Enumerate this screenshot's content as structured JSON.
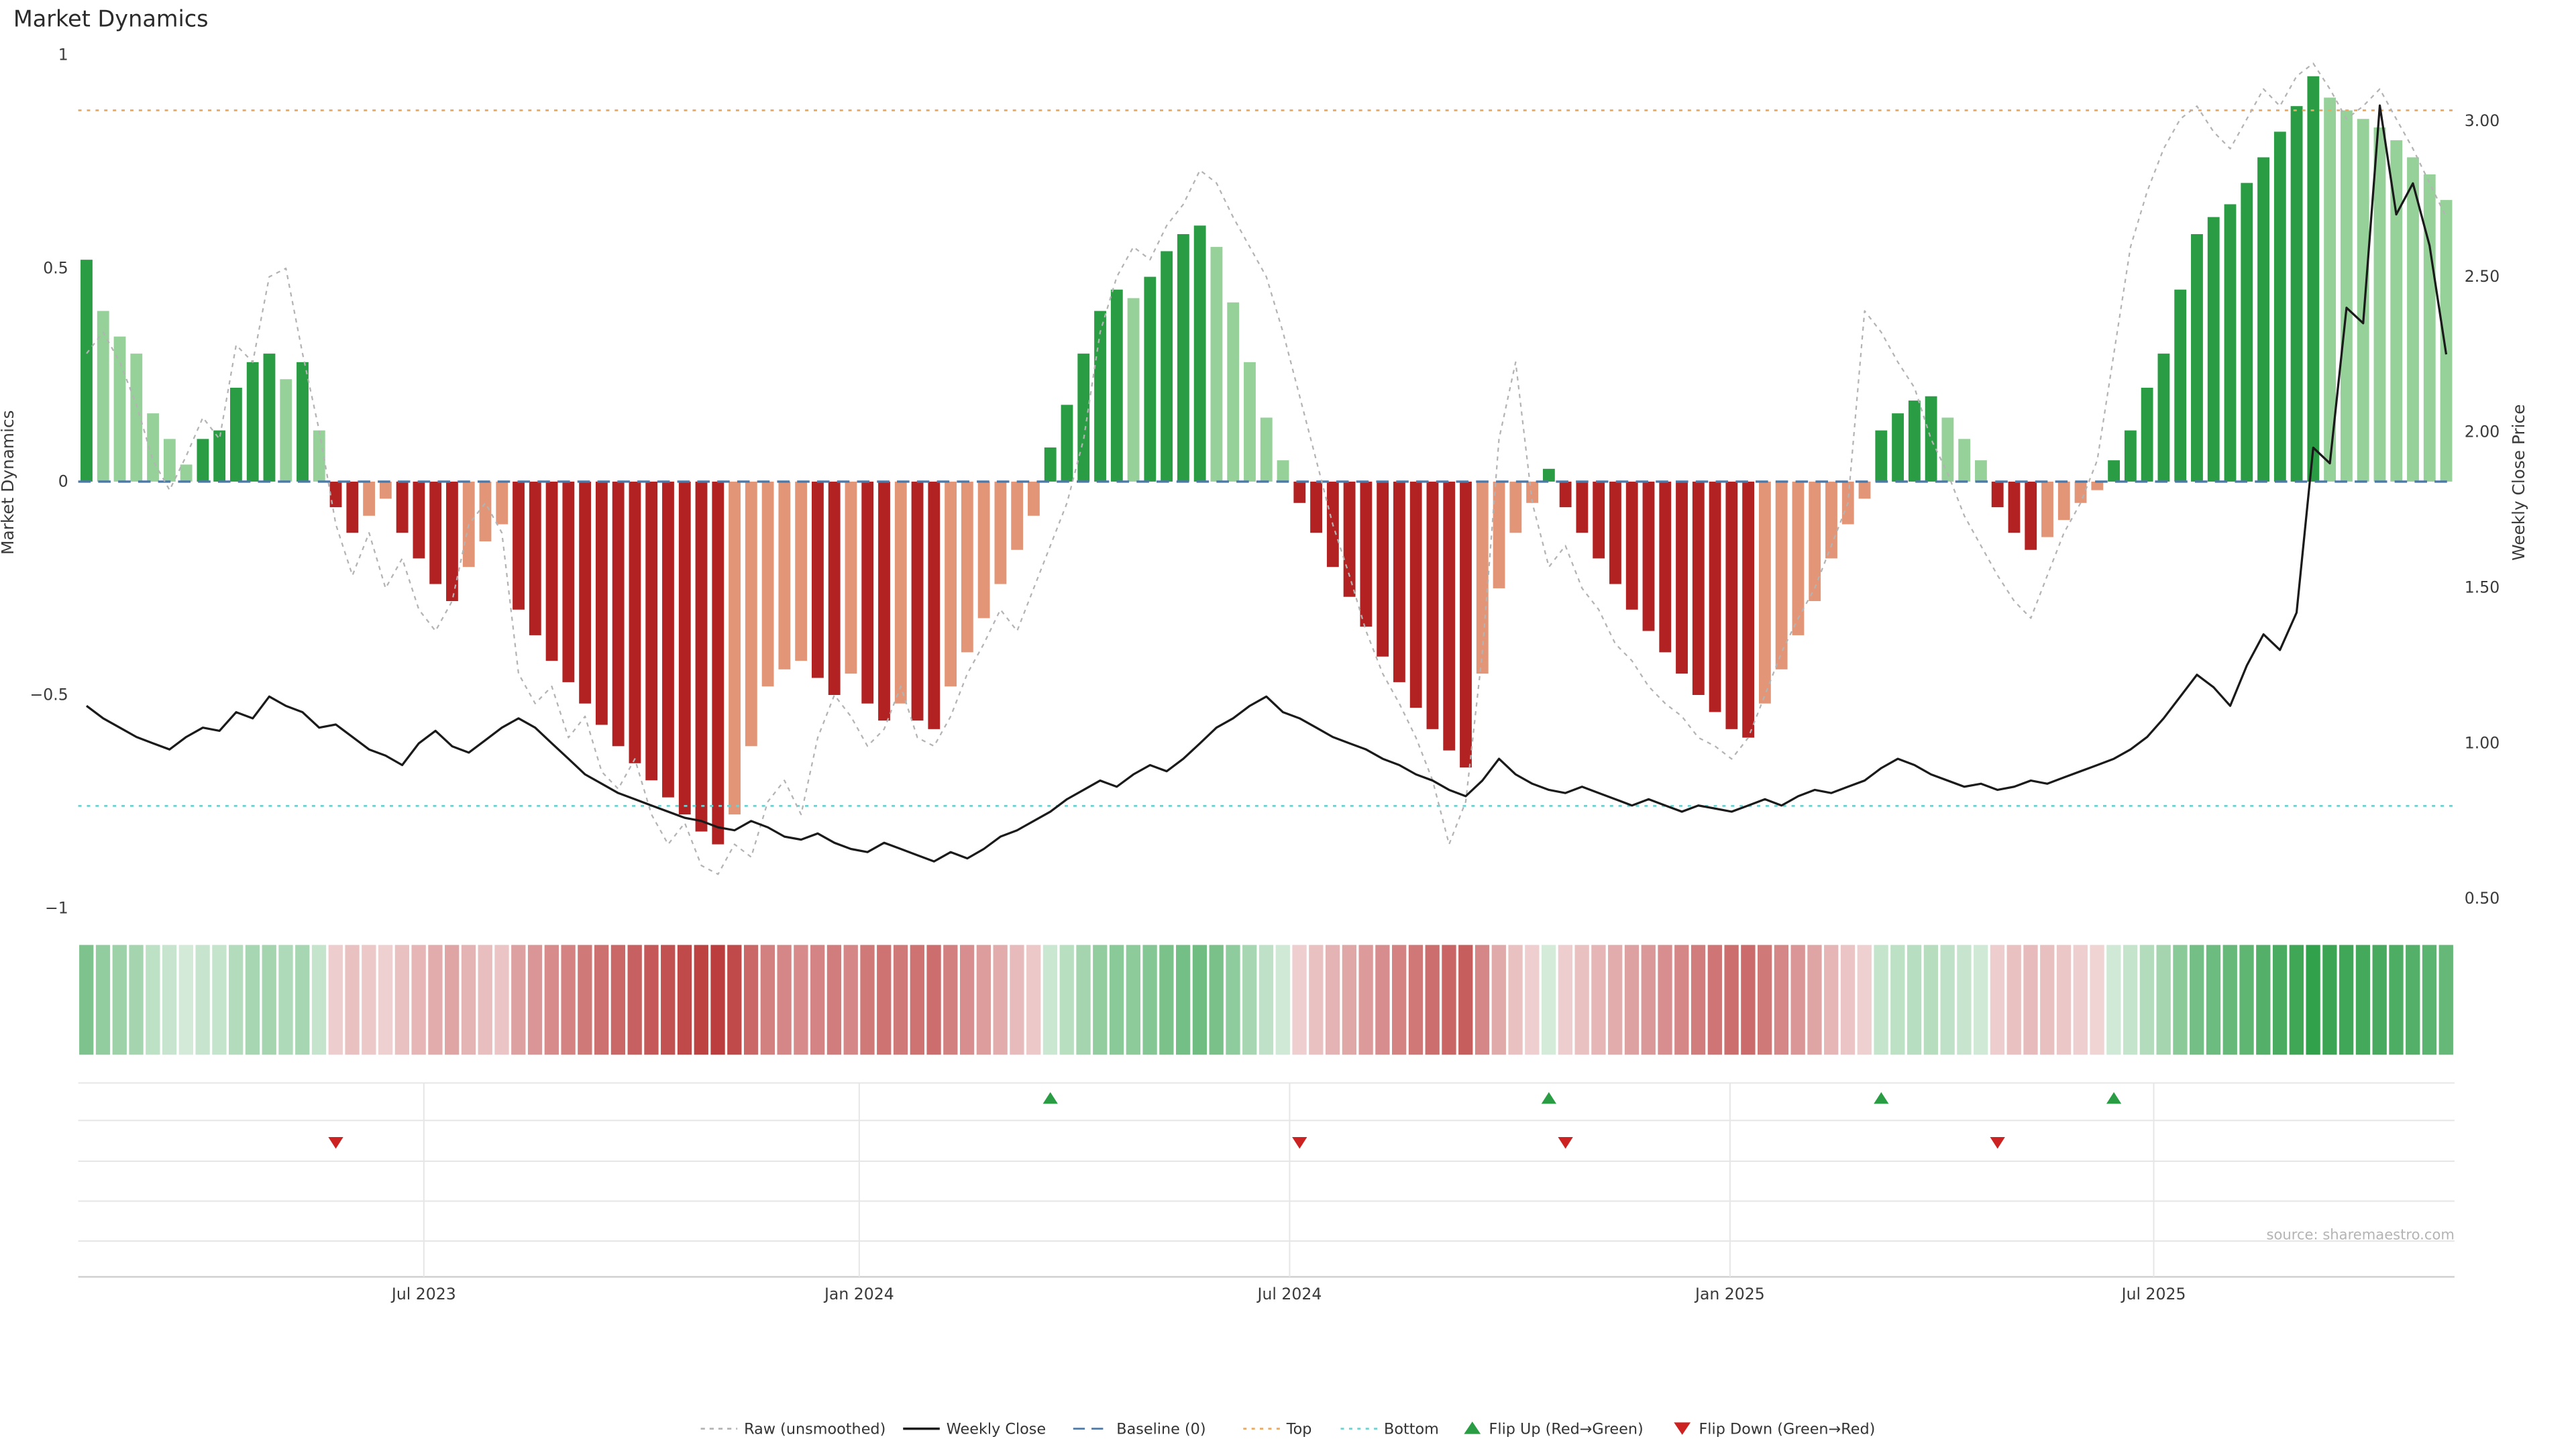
{
  "title": "Market Dynamics",
  "source": "source: sharemaestro.com",
  "axes": {
    "left": {
      "label": "Market Dynamics",
      "ticks": [
        "1",
        "0.5",
        "0",
        "−0.5",
        "−1"
      ],
      "tick_values": [
        1,
        0.5,
        0,
        -0.5,
        -1
      ],
      "range": [
        -1,
        1
      ]
    },
    "right": {
      "label": "Weekly Close Price",
      "ticks": [
        "3.00",
        "2.50",
        "2.00",
        "1.50",
        "1.00",
        "0.50"
      ],
      "tick_values": [
        3.0,
        2.5,
        2.0,
        1.5,
        1.0,
        0.5
      ],
      "range": [
        0.4693,
        3.2128
      ]
    },
    "x": {
      "ticks": [
        {
          "label": "Jul 2023",
          "week": 20.8
        },
        {
          "label": "Jan 2024",
          "week": 47.0
        },
        {
          "label": "Jul 2024",
          "week": 72.9
        },
        {
          "label": "Jan 2025",
          "week": 99.4
        },
        {
          "label": "Jul 2025",
          "week": 124.9
        }
      ]
    }
  },
  "chart_data": {
    "type": "combo: weekly oscillator bars + raw dashed line (left axis), weekly close line (right axis), heatmap strip, flip event markers",
    "weeks": 143,
    "reference_lines": {
      "baseline": 0,
      "top": 0.87,
      "bottom": -0.76
    },
    "series": [
      {
        "name": "Market Dynamics (smoothed bars)",
        "type": "bar",
        "axis": "left",
        "values": [
          0.52,
          0.4,
          0.34,
          0.3,
          0.16,
          0.1,
          0.04,
          0.1,
          0.12,
          0.22,
          0.28,
          0.3,
          0.24,
          0.28,
          0.12,
          -0.06,
          -0.12,
          -0.08,
          -0.04,
          -0.12,
          -0.18,
          -0.24,
          -0.28,
          -0.2,
          -0.14,
          -0.1,
          -0.3,
          -0.36,
          -0.42,
          -0.47,
          -0.52,
          -0.57,
          -0.62,
          -0.66,
          -0.7,
          -0.74,
          -0.78,
          -0.82,
          -0.85,
          -0.78,
          -0.62,
          -0.48,
          -0.44,
          -0.42,
          -0.46,
          -0.5,
          -0.45,
          -0.52,
          -0.56,
          -0.52,
          -0.56,
          -0.58,
          -0.48,
          -0.4,
          -0.32,
          -0.24,
          -0.16,
          -0.08,
          0.08,
          0.18,
          0.3,
          0.4,
          0.45,
          0.43,
          0.48,
          0.54,
          0.58,
          0.6,
          0.55,
          0.42,
          0.28,
          0.15,
          0.05,
          -0.05,
          -0.12,
          -0.2,
          -0.27,
          -0.34,
          -0.41,
          -0.47,
          -0.53,
          -0.58,
          -0.63,
          -0.67,
          -0.45,
          -0.25,
          -0.12,
          -0.05,
          0.03,
          -0.06,
          -0.12,
          -0.18,
          -0.24,
          -0.3,
          -0.35,
          -0.4,
          -0.45,
          -0.5,
          -0.54,
          -0.58,
          -0.6,
          -0.52,
          -0.44,
          -0.36,
          -0.28,
          -0.18,
          -0.1,
          -0.04,
          0.12,
          0.16,
          0.19,
          0.2,
          0.15,
          0.1,
          0.05,
          -0.06,
          -0.12,
          -0.16,
          -0.13,
          -0.09,
          -0.05,
          -0.02,
          0.05,
          0.12,
          0.22,
          0.3,
          0.45,
          0.58,
          0.62,
          0.65,
          0.7,
          0.76,
          0.82,
          0.88,
          0.95,
          0.9,
          0.87,
          0.85,
          0.83,
          0.8,
          0.76,
          0.72,
          0.66
        ]
      },
      {
        "name": "Raw (unsmoothed)",
        "type": "line",
        "axis": "left",
        "values": [
          0.3,
          0.35,
          0.28,
          0.18,
          0.05,
          -0.02,
          0.06,
          0.15,
          0.1,
          0.32,
          0.28,
          0.48,
          0.5,
          0.3,
          0.12,
          -0.1,
          -0.22,
          -0.12,
          -0.25,
          -0.18,
          -0.3,
          -0.35,
          -0.28,
          -0.1,
          -0.05,
          -0.12,
          -0.45,
          -0.52,
          -0.48,
          -0.6,
          -0.55,
          -0.68,
          -0.72,
          -0.65,
          -0.78,
          -0.85,
          -0.8,
          -0.9,
          -0.92,
          -0.85,
          -0.88,
          -0.75,
          -0.7,
          -0.78,
          -0.6,
          -0.5,
          -0.55,
          -0.62,
          -0.58,
          -0.48,
          -0.6,
          -0.62,
          -0.55,
          -0.45,
          -0.38,
          -0.3,
          -0.35,
          -0.25,
          -0.15,
          -0.05,
          0.1,
          0.35,
          0.48,
          0.55,
          0.52,
          0.6,
          0.65,
          0.73,
          0.7,
          0.62,
          0.55,
          0.48,
          0.35,
          0.2,
          0.05,
          -0.1,
          -0.22,
          -0.35,
          -0.45,
          -0.52,
          -0.6,
          -0.7,
          -0.85,
          -0.75,
          -0.4,
          0.1,
          0.28,
          -0.05,
          -0.2,
          -0.15,
          -0.25,
          -0.3,
          -0.38,
          -0.42,
          -0.48,
          -0.52,
          -0.55,
          -0.6,
          -0.62,
          -0.65,
          -0.6,
          -0.5,
          -0.4,
          -0.32,
          -0.25,
          -0.15,
          -0.05,
          0.4,
          0.35,
          0.28,
          0.22,
          0.1,
          0.02,
          -0.08,
          -0.15,
          -0.22,
          -0.28,
          -0.32,
          -0.22,
          -0.12,
          -0.05,
          0.05,
          0.3,
          0.55,
          0.68,
          0.78,
          0.85,
          0.88,
          0.82,
          0.78,
          0.85,
          0.92,
          0.88,
          0.95,
          0.98,
          0.92,
          0.85,
          0.88,
          0.92,
          0.85,
          0.78,
          0.7,
          0.62
        ]
      },
      {
        "name": "Weekly Close",
        "type": "line",
        "axis": "right",
        "values": [
          1.12,
          1.08,
          1.05,
          1.02,
          1.0,
          0.98,
          1.02,
          1.05,
          1.04,
          1.1,
          1.08,
          1.15,
          1.12,
          1.1,
          1.05,
          1.06,
          1.02,
          0.98,
          0.96,
          0.93,
          1.0,
          1.04,
          0.99,
          0.97,
          1.01,
          1.05,
          1.08,
          1.05,
          1.0,
          0.95,
          0.9,
          0.87,
          0.84,
          0.82,
          0.8,
          0.78,
          0.76,
          0.75,
          0.73,
          0.72,
          0.75,
          0.73,
          0.7,
          0.69,
          0.71,
          0.68,
          0.66,
          0.65,
          0.68,
          0.66,
          0.64,
          0.62,
          0.65,
          0.63,
          0.66,
          0.7,
          0.72,
          0.75,
          0.78,
          0.82,
          0.85,
          0.88,
          0.86,
          0.9,
          0.93,
          0.91,
          0.95,
          1.0,
          1.05,
          1.08,
          1.12,
          1.15,
          1.1,
          1.08,
          1.05,
          1.02,
          1.0,
          0.98,
          0.95,
          0.93,
          0.9,
          0.88,
          0.85,
          0.83,
          0.88,
          0.95,
          0.9,
          0.87,
          0.85,
          0.84,
          0.86,
          0.84,
          0.82,
          0.8,
          0.82,
          0.8,
          0.78,
          0.8,
          0.79,
          0.78,
          0.8,
          0.82,
          0.8,
          0.83,
          0.85,
          0.84,
          0.86,
          0.88,
          0.92,
          0.95,
          0.93,
          0.9,
          0.88,
          0.86,
          0.87,
          0.85,
          0.86,
          0.88,
          0.87,
          0.89,
          0.91,
          0.93,
          0.95,
          0.98,
          1.02,
          1.08,
          1.15,
          1.22,
          1.18,
          1.12,
          1.25,
          1.35,
          1.3,
          1.42,
          1.95,
          1.9,
          2.4,
          2.35,
          3.05,
          2.7,
          2.8,
          2.6,
          2.25
        ]
      }
    ],
    "flip_up_weeks": [
      58,
      88,
      108,
      122
    ],
    "flip_down_weeks": [
      15,
      73,
      89,
      115
    ]
  },
  "legend": {
    "items": [
      {
        "label": "Raw (unsmoothed)",
        "marker": "line",
        "dash": "2.5 2.8",
        "color_key": "raw_line"
      },
      {
        "label": "Weekly Close",
        "marker": "line",
        "dash": "",
        "color_key": "close_line"
      },
      {
        "label": "Baseline (0)",
        "marker": "line",
        "dash": "7 4",
        "color_key": "baseline"
      },
      {
        "label": "Top",
        "marker": "line",
        "dash": "2 3",
        "color_key": "top_line"
      },
      {
        "label": "Bottom",
        "marker": "line",
        "dash": "2 3",
        "color_key": "bottom_line"
      },
      {
        "label": "Flip Up (Red→Green)",
        "marker": "triangle-up",
        "dash": "",
        "color_key": "flip_up"
      },
      {
        "label": "Flip Down (Green→Red)",
        "marker": "triangle-down",
        "dash": "",
        "color_key": "flip_down"
      }
    ]
  },
  "colors": {
    "bar_green_strong": "#2a9d44",
    "bar_green_soft": "#97d19a",
    "bar_red_strong": "#b22222",
    "bar_red_soft": "#e39677",
    "heat_green": "#2a9d44",
    "heat_red": "#b22222",
    "raw_line": "#b3b3b3",
    "close_line": "#1a1a1a",
    "baseline": "#4e79a7",
    "top_line": "#eaa960",
    "bottom_line": "#6fd0d0",
    "flip_up": "#2a9d44",
    "flip_down": "#cc2222",
    "grid": "#e6e6e6",
    "axis_line": "#d0d0d0"
  }
}
